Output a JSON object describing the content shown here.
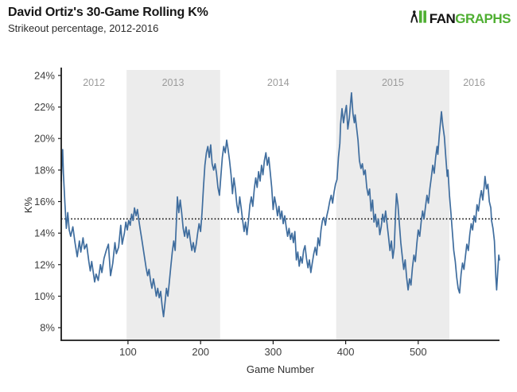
{
  "header": {
    "title": "David Ortiz's 30-Game Rolling K%",
    "subtitle": "Strikeout percentage, 2012-2016"
  },
  "logo": {
    "fan": "FAN",
    "graphs": "GRAPHS",
    "green": "#4faf32",
    "dark": "#1c1c1c"
  },
  "chart_data": {
    "type": "line",
    "title": "David Ortiz's 30-Game Rolling K%",
    "subtitle": "Strikeout percentage, 2012-2016",
    "xlabel": "Game Number",
    "ylabel": "K%",
    "xlim": [
      8,
      612
    ],
    "ylim": [
      7.2,
      24.35
    ],
    "x_ticks": [
      100,
      200,
      300,
      400,
      500
    ],
    "y_ticks": [
      8,
      10,
      12,
      14,
      16,
      18,
      20,
      22,
      24
    ],
    "y_tick_suffix": "%",
    "grid": false,
    "legend": "none",
    "line_color": "#3f6d9e",
    "band_color": "#ececec",
    "axis_color": "#1a1a1a",
    "tick_label_color": "#3d3d3d",
    "year_label_color": "#9b9b9b",
    "reference_line": {
      "value": 14.9,
      "color": "#000000",
      "style": "dotted"
    },
    "season_bands": [
      {
        "label": "2013",
        "x0": 98,
        "x1": 227
      },
      {
        "label": "2015",
        "x0": 387,
        "x1": 543
      }
    ],
    "season_labels": [
      {
        "label": "2012",
        "x": 53
      },
      {
        "label": "2013",
        "x": 162
      },
      {
        "label": "2014",
        "x": 307
      },
      {
        "label": "2015",
        "x": 465
      },
      {
        "label": "2016",
        "x": 577
      }
    ],
    "series": [
      {
        "name": "30-game rolling K%",
        "points": [
          [
            8,
            17.3
          ],
          [
            9,
            18.6
          ],
          [
            10,
            19.3
          ],
          [
            11,
            17.8
          ],
          [
            13,
            15.9
          ],
          [
            15,
            14.3
          ],
          [
            17,
            15.3
          ],
          [
            19,
            14.2
          ],
          [
            21,
            13.8
          ],
          [
            24,
            14.4
          ],
          [
            27,
            13.4
          ],
          [
            30,
            12.5
          ],
          [
            33,
            13.5
          ],
          [
            35,
            12.8
          ],
          [
            38,
            13.7
          ],
          [
            40,
            13.0
          ],
          [
            43,
            13.3
          ],
          [
            46,
            12.2
          ],
          [
            48,
            11.6
          ],
          [
            50,
            12.2
          ],
          [
            54,
            10.9
          ],
          [
            56,
            11.4
          ],
          [
            59,
            11.0
          ],
          [
            62,
            12.0
          ],
          [
            64,
            11.5
          ],
          [
            67,
            12.4
          ],
          [
            70,
            12.9
          ],
          [
            73,
            13.3
          ],
          [
            76,
            11.3
          ],
          [
            79,
            12.1
          ],
          [
            82,
            13.4
          ],
          [
            84,
            12.7
          ],
          [
            87,
            13.1
          ],
          [
            90,
            14.5
          ],
          [
            92,
            13.3
          ],
          [
            95,
            14.0
          ],
          [
            97,
            14.7
          ],
          [
            99,
            14.2
          ],
          [
            101,
            14.8
          ],
          [
            103,
            14.5
          ],
          [
            105,
            15.2
          ],
          [
            107,
            14.8
          ],
          [
            109,
            15.6
          ],
          [
            111,
            15.1
          ],
          [
            113,
            15.5
          ],
          [
            115,
            14.8
          ],
          [
            117,
            14.2
          ],
          [
            119,
            13.6
          ],
          [
            121,
            13.0
          ],
          [
            123,
            12.4
          ],
          [
            125,
            11.8
          ],
          [
            127,
            11.3
          ],
          [
            129,
            11.7
          ],
          [
            131,
            11.0
          ],
          [
            133,
            10.5
          ],
          [
            135,
            11.1
          ],
          [
            137,
            10.6
          ],
          [
            139,
            10.0
          ],
          [
            141,
            10.5
          ],
          [
            143,
            9.9
          ],
          [
            145,
            10.3
          ],
          [
            147,
            9.4
          ],
          [
            149,
            8.7
          ],
          [
            151,
            9.6
          ],
          [
            153,
            10.5
          ],
          [
            155,
            10.0
          ],
          [
            157,
            10.9
          ],
          [
            159,
            11.9
          ],
          [
            161,
            12.8
          ],
          [
            163,
            13.5
          ],
          [
            165,
            12.9
          ],
          [
            167,
            15.0
          ],
          [
            168,
            16.3
          ],
          [
            170,
            15.3
          ],
          [
            172,
            16.1
          ],
          [
            174,
            15.3
          ],
          [
            176,
            14.3
          ],
          [
            178,
            13.8
          ],
          [
            180,
            14.4
          ],
          [
            182,
            13.7
          ],
          [
            184,
            14.2
          ],
          [
            186,
            13.5
          ],
          [
            188,
            12.9
          ],
          [
            190,
            13.4
          ],
          [
            192,
            12.8
          ],
          [
            194,
            13.3
          ],
          [
            196,
            14.0
          ],
          [
            198,
            14.6
          ],
          [
            200,
            14.1
          ],
          [
            202,
            15.3
          ],
          [
            204,
            16.9
          ],
          [
            206,
            18.3
          ],
          [
            208,
            19.1
          ],
          [
            210,
            19.5
          ],
          [
            212,
            18.8
          ],
          [
            214,
            19.6
          ],
          [
            216,
            18.4
          ],
          [
            218,
            18.0
          ],
          [
            220,
            18.4
          ],
          [
            222,
            17.8
          ],
          [
            224,
            16.9
          ],
          [
            226,
            16.4
          ],
          [
            228,
            17.6
          ],
          [
            230,
            18.8
          ],
          [
            232,
            19.5
          ],
          [
            234,
            19.1
          ],
          [
            236,
            19.9
          ],
          [
            238,
            19.3
          ],
          [
            240,
            18.6
          ],
          [
            242,
            17.7
          ],
          [
            244,
            16.5
          ],
          [
            246,
            17.5
          ],
          [
            248,
            16.8
          ],
          [
            250,
            15.8
          ],
          [
            252,
            15.3
          ],
          [
            254,
            16.3
          ],
          [
            256,
            15.6
          ],
          [
            258,
            14.8
          ],
          [
            260,
            14.1
          ],
          [
            262,
            14.7
          ],
          [
            264,
            13.9
          ],
          [
            266,
            14.8
          ],
          [
            268,
            15.8
          ],
          [
            270,
            16.3
          ],
          [
            272,
            15.7
          ],
          [
            274,
            16.8
          ],
          [
            276,
            17.5
          ],
          [
            278,
            16.9
          ],
          [
            280,
            17.9
          ],
          [
            282,
            17.3
          ],
          [
            284,
            18.3
          ],
          [
            286,
            17.7
          ],
          [
            288,
            18.6
          ],
          [
            290,
            19.1
          ],
          [
            292,
            18.3
          ],
          [
            294,
            18.8
          ],
          [
            296,
            17.9
          ],
          [
            298,
            16.9
          ],
          [
            300,
            15.5
          ],
          [
            302,
            16.3
          ],
          [
            304,
            15.8
          ],
          [
            306,
            15.1
          ],
          [
            308,
            15.7
          ],
          [
            310,
            14.9
          ],
          [
            312,
            15.4
          ],
          [
            314,
            14.6
          ],
          [
            316,
            15.1
          ],
          [
            318,
            14.4
          ],
          [
            320,
            13.8
          ],
          [
            322,
            14.3
          ],
          [
            324,
            13.6
          ],
          [
            326,
            14.0
          ],
          [
            328,
            13.4
          ],
          [
            330,
            14.1
          ],
          [
            332,
            12.3
          ],
          [
            334,
            12.8
          ],
          [
            336,
            11.9
          ],
          [
            338,
            12.5
          ],
          [
            340,
            12.1
          ],
          [
            342,
            12.9
          ],
          [
            344,
            13.2
          ],
          [
            346,
            12.4
          ],
          [
            348,
            11.8
          ],
          [
            350,
            12.3
          ],
          [
            352,
            11.5
          ],
          [
            354,
            12.1
          ],
          [
            356,
            12.7
          ],
          [
            358,
            13.1
          ],
          [
            360,
            12.6
          ],
          [
            362,
            13.7
          ],
          [
            364,
            13.2
          ],
          [
            366,
            14.2
          ],
          [
            368,
            14.8
          ],
          [
            370,
            15.0
          ],
          [
            372,
            14.5
          ],
          [
            374,
            15.1
          ],
          [
            376,
            15.5
          ],
          [
            378,
            16.0
          ],
          [
            380,
            16.4
          ],
          [
            382,
            15.9
          ],
          [
            384,
            16.6
          ],
          [
            386,
            17.1
          ],
          [
            388,
            17.4
          ],
          [
            390,
            18.8
          ],
          [
            392,
            19.7
          ],
          [
            393,
            20.9
          ],
          [
            395,
            21.9
          ],
          [
            397,
            21.0
          ],
          [
            399,
            21.6
          ],
          [
            401,
            22.1
          ],
          [
            403,
            20.6
          ],
          [
            405,
            21.3
          ],
          [
            407,
            22.4
          ],
          [
            408,
            22.9
          ],
          [
            410,
            21.6
          ],
          [
            412,
            21.0
          ],
          [
            413,
            21.5
          ],
          [
            415,
            20.7
          ],
          [
            417,
            19.9
          ],
          [
            419,
            18.6
          ],
          [
            421,
            18.1
          ],
          [
            423,
            18.4
          ],
          [
            425,
            17.7
          ],
          [
            427,
            18.0
          ],
          [
            429,
            16.9
          ],
          [
            431,
            16.4
          ],
          [
            433,
            16.8
          ],
          [
            435,
            15.4
          ],
          [
            437,
            16.1
          ],
          [
            439,
            14.7
          ],
          [
            441,
            15.2
          ],
          [
            443,
            14.4
          ],
          [
            445,
            14.9
          ],
          [
            447,
            13.9
          ],
          [
            449,
            14.4
          ],
          [
            451,
            15.2
          ],
          [
            453,
            14.7
          ],
          [
            455,
            15.4
          ],
          [
            457,
            14.6
          ],
          [
            459,
            13.8
          ],
          [
            461,
            12.9
          ],
          [
            463,
            13.5
          ],
          [
            465,
            12.4
          ],
          [
            467,
            13.1
          ],
          [
            469,
            15.5
          ],
          [
            470,
            16.5
          ],
          [
            472,
            15.8
          ],
          [
            474,
            14.6
          ],
          [
            476,
            13.4
          ],
          [
            478,
            12.5
          ],
          [
            480,
            11.7
          ],
          [
            482,
            12.3
          ],
          [
            484,
            11.2
          ],
          [
            486,
            10.4
          ],
          [
            488,
            11.1
          ],
          [
            490,
            10.7
          ],
          [
            492,
            11.8
          ],
          [
            494,
            12.6
          ],
          [
            496,
            12.2
          ],
          [
            498,
            13.3
          ],
          [
            500,
            14.2
          ],
          [
            502,
            13.8
          ],
          [
            504,
            14.7
          ],
          [
            506,
            15.4
          ],
          [
            508,
            14.9
          ],
          [
            510,
            15.7
          ],
          [
            512,
            16.4
          ],
          [
            514,
            15.9
          ],
          [
            516,
            16.8
          ],
          [
            518,
            17.5
          ],
          [
            520,
            18.3
          ],
          [
            522,
            17.8
          ],
          [
            524,
            18.8
          ],
          [
            526,
            19.5
          ],
          [
            527,
            19.0
          ],
          [
            529,
            20.2
          ],
          [
            530,
            20.7
          ],
          [
            531,
            21.2
          ],
          [
            532,
            21.7
          ],
          [
            534,
            20.8
          ],
          [
            536,
            20.1
          ],
          [
            538,
            18.8
          ],
          [
            540,
            17.6
          ],
          [
            541,
            18.0
          ],
          [
            543,
            16.4
          ],
          [
            545,
            15.3
          ],
          [
            547,
            14.1
          ],
          [
            549,
            12.9
          ],
          [
            551,
            12.2
          ],
          [
            553,
            11.2
          ],
          [
            555,
            10.5
          ],
          [
            557,
            10.2
          ],
          [
            559,
            11.4
          ],
          [
            561,
            12.1
          ],
          [
            563,
            11.7
          ],
          [
            565,
            12.5
          ],
          [
            567,
            13.3
          ],
          [
            569,
            12.9
          ],
          [
            571,
            13.9
          ],
          [
            573,
            14.6
          ],
          [
            575,
            14.2
          ],
          [
            577,
            15.1
          ],
          [
            579,
            14.7
          ],
          [
            581,
            15.8
          ],
          [
            583,
            15.4
          ],
          [
            585,
            16.2
          ],
          [
            587,
            16.7
          ],
          [
            589,
            16.1
          ],
          [
            591,
            17.0
          ],
          [
            592,
            17.6
          ],
          [
            594,
            16.8
          ],
          [
            596,
            17.1
          ],
          [
            598,
            16.0
          ],
          [
            600,
            15.6
          ],
          [
            601,
            14.8
          ],
          [
            603,
            14.3
          ],
          [
            605,
            13.5
          ],
          [
            606,
            12.4
          ],
          [
            607,
            11.2
          ],
          [
            608,
            10.4
          ],
          [
            610,
            11.9
          ],
          [
            611,
            12.6
          ],
          [
            612,
            12.3
          ]
        ]
      }
    ]
  }
}
